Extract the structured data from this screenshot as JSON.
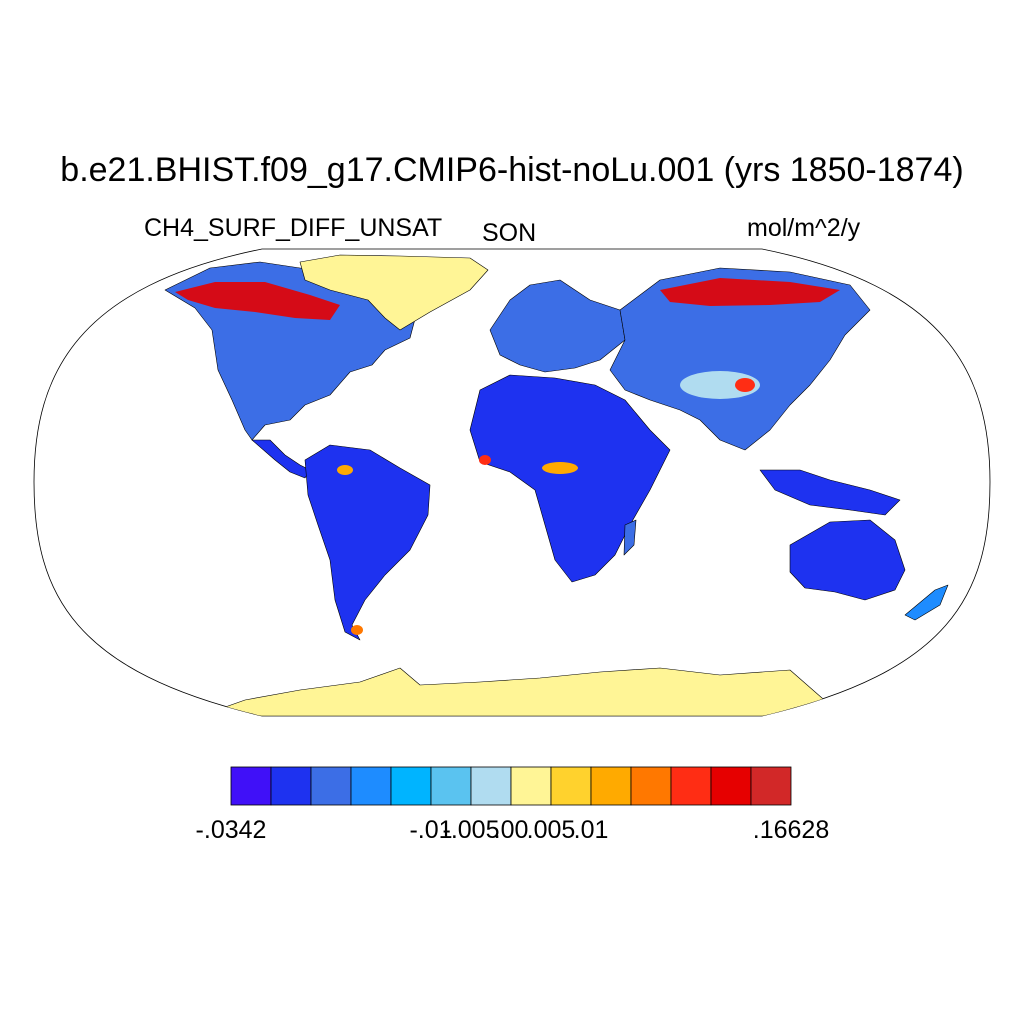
{
  "title": "b.e21.BHIST.f09_g17.CMIP6-hist-noLu.001 (yrs 1850-1874)",
  "left_label": "CH4_SURF_DIFF_UNSAT",
  "center_label": "SON",
  "right_label": "mol/m^2/y",
  "map": {
    "projection": "Robinson",
    "ocean_color": "#ffffff",
    "coastline_color": "#000000"
  },
  "colorbar": {
    "colors": [
      "#4010f8",
      "#1e32f0",
      "#3c6ee6",
      "#1e8cff",
      "#00b4ff",
      "#5ac3f0",
      "#b0dcf0",
      "#fff596",
      "#ffd22d",
      "#ffaa00",
      "#ff7800",
      "#ff2d14",
      "#e60000",
      "#d22828"
    ],
    "tick_labels": [
      "-.0342",
      "-.01",
      "-.005",
      ".00",
      ".005",
      ".01",
      ".16628"
    ],
    "tick_boundary_index": [
      0,
      5,
      6,
      7,
      8,
      9,
      14
    ]
  }
}
